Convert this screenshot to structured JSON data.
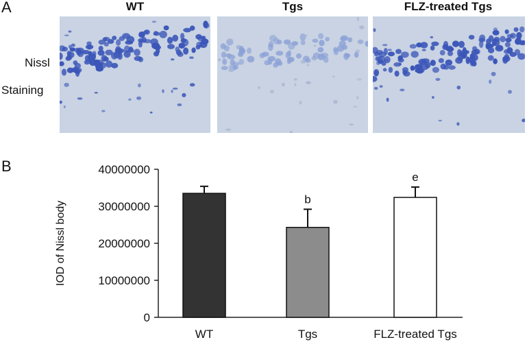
{
  "panel_a": {
    "letter": "A",
    "row_label_line1": "Nissl",
    "row_label_line2": "Staining",
    "columns": [
      "WT",
      "Tgs",
      "FLZ-treated Tgs"
    ],
    "colors": {
      "background": "#c9d3e3",
      "cells": "#3b56b8",
      "cells_faint": "#8aa0d6"
    }
  },
  "panel_b": {
    "letter": "B"
  },
  "chart_data": {
    "type": "bar",
    "categories": [
      "WT",
      "Tgs",
      "FLZ-treated Tgs"
    ],
    "values": [
      33500000,
      24300000,
      32400000
    ],
    "errors": [
      1900000,
      4900000,
      2800000
    ],
    "significance": [
      "",
      "b",
      "e"
    ],
    "bar_colors": [
      "#333333",
      "#8c8c8c",
      "#ffffff"
    ],
    "ylabel": "IOD of Nissl body",
    "xlabel": "",
    "ylim": [
      0,
      40000000
    ],
    "yticks": [
      "0",
      "10000000",
      "20000000",
      "30000000",
      "40000000"
    ],
    "grid": false
  }
}
